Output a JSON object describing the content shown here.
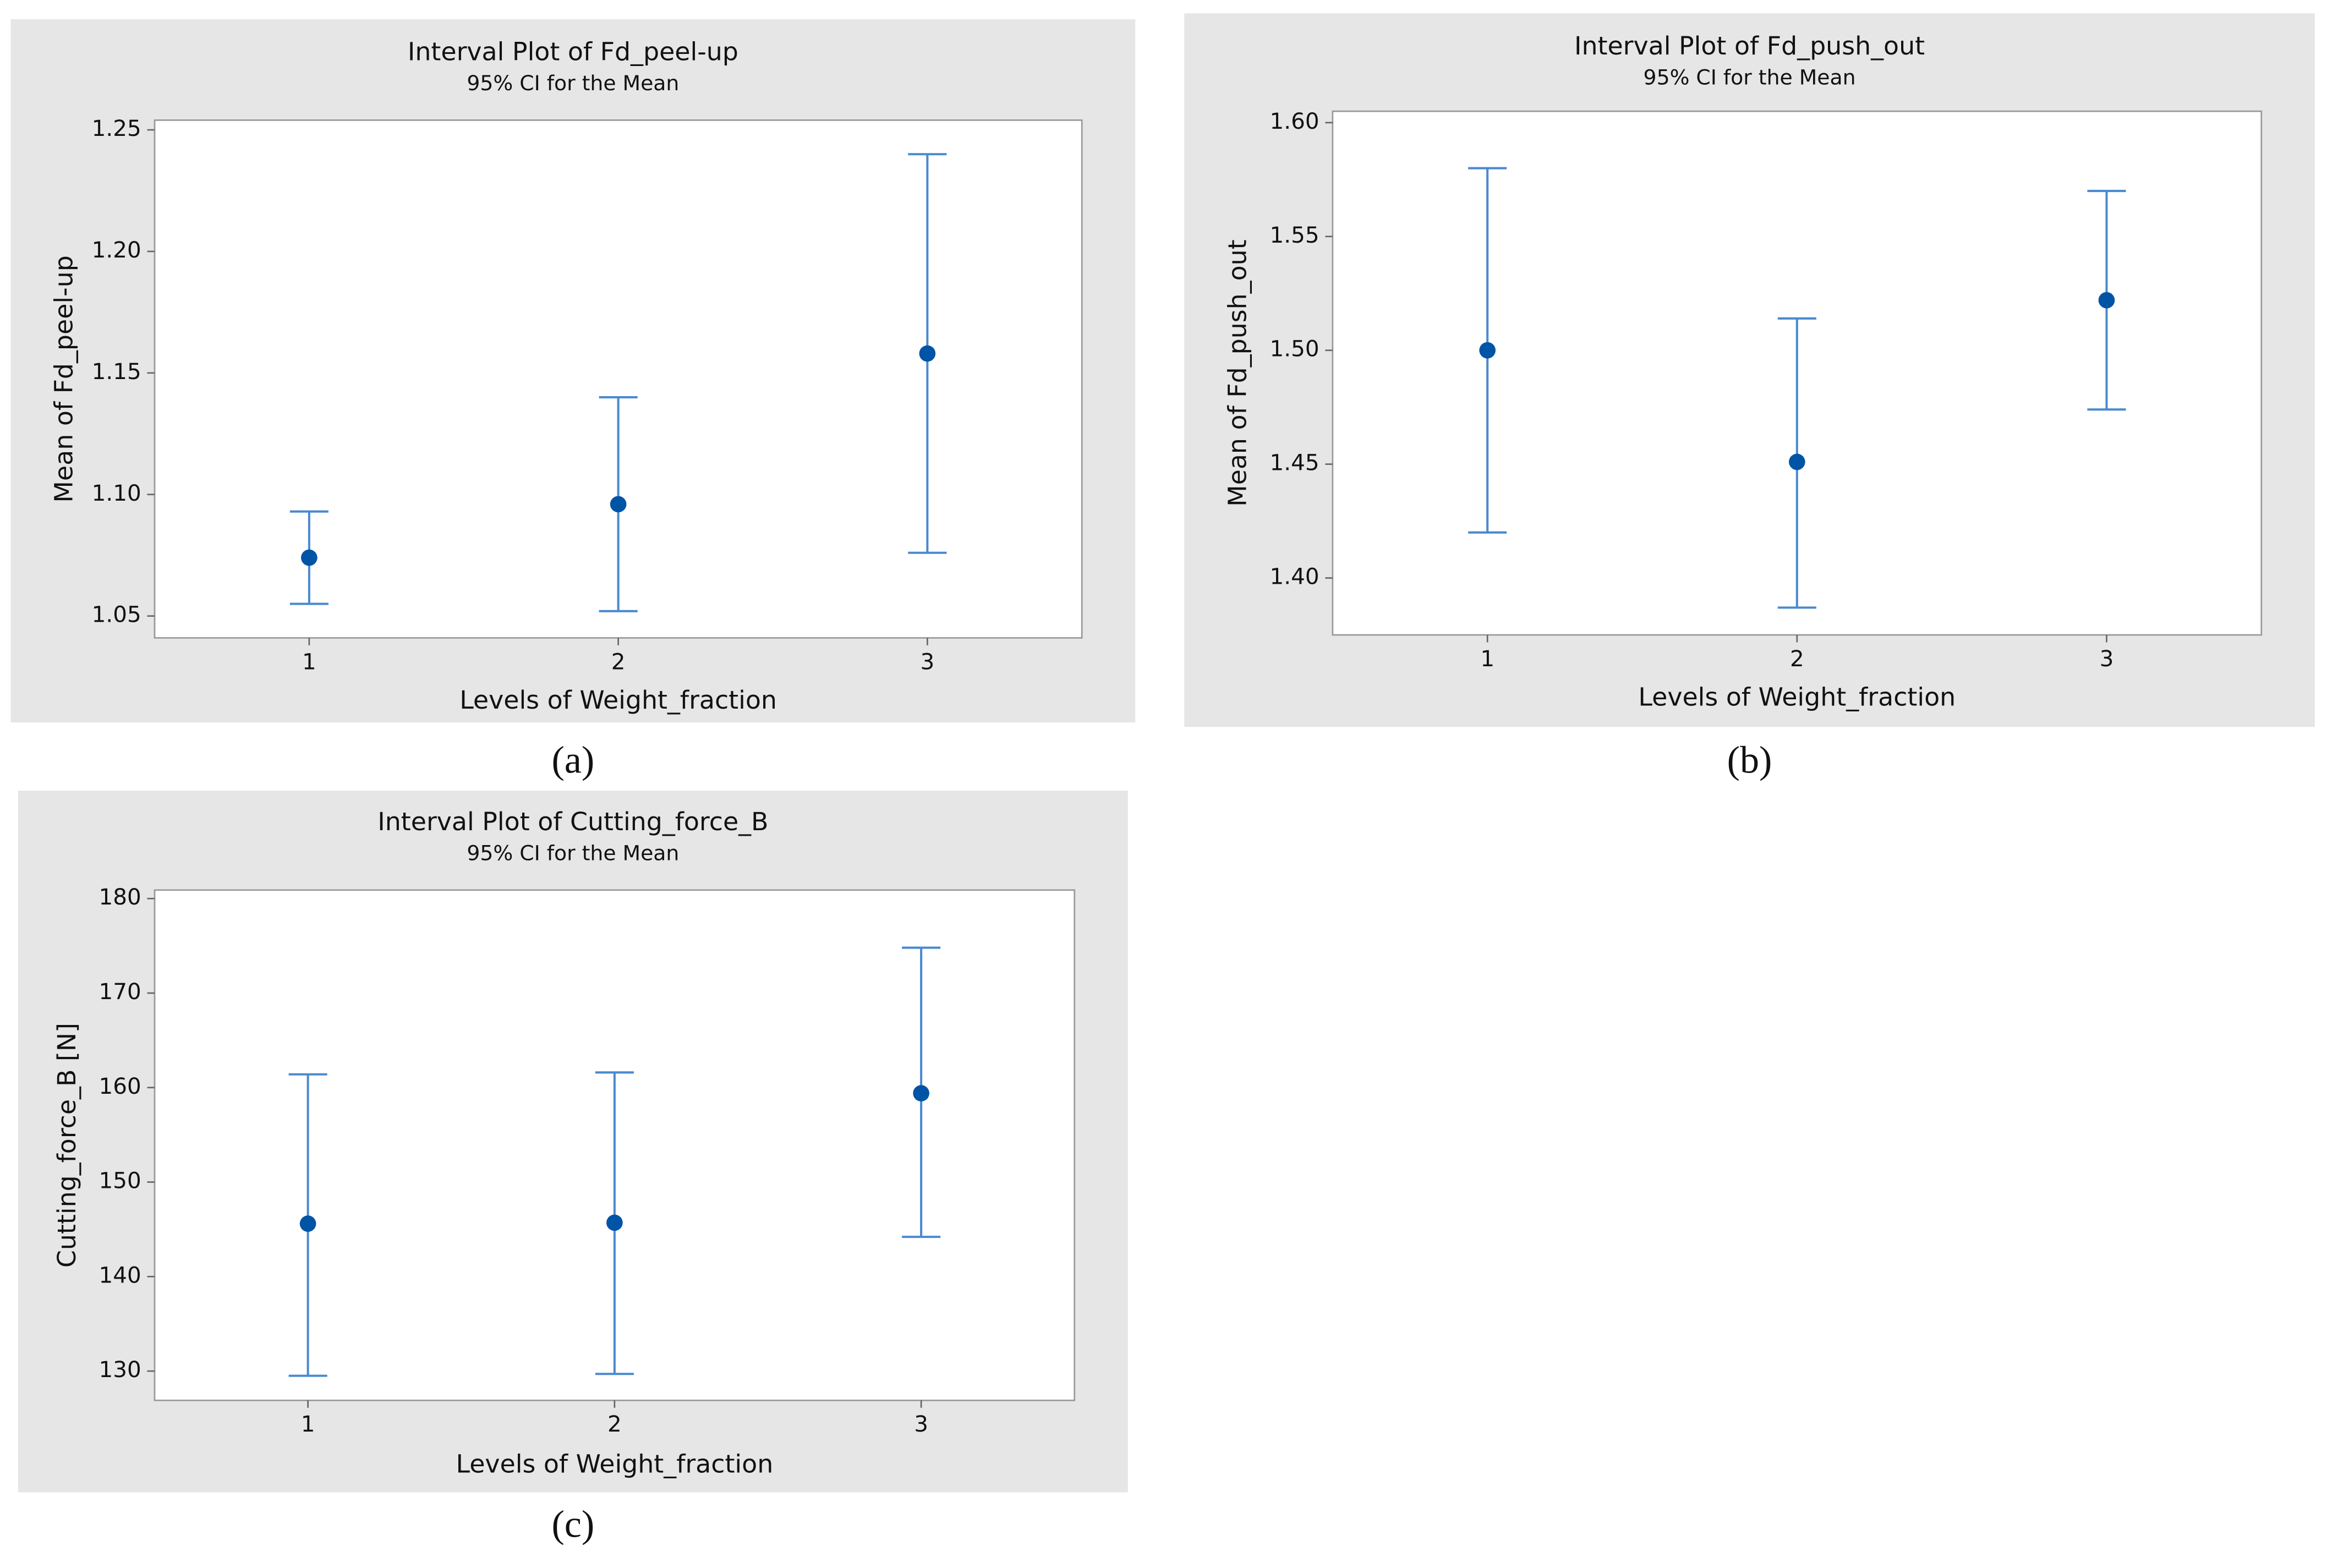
{
  "chart_data": [
    {
      "type": "interval",
      "panel_label": "(a)",
      "title": "Interval Plot of Fd_peel-up",
      "subtitle": "95% CI for the Mean",
      "x_label": "Levels of Weight_fraction",
      "y_label": "Mean of Fd_peel-up",
      "categories": [
        "1",
        "2",
        "3"
      ],
      "values": [
        1.074,
        1.096,
        1.158
      ],
      "lower": [
        1.055,
        1.052,
        1.076
      ],
      "upper": [
        1.093,
        1.14,
        1.24
      ],
      "color": "#0054a6",
      "interval_color": "#4a8ad0",
      "ylim": [
        1.041,
        1.254
      ],
      "yticks": [
        1.05,
        {
          "value": 1.1,
          "label": "1.10"
        },
        1.15,
        {
          "value": 1.2,
          "label": "1.20"
        },
        1.25
      ]
    },
    {
      "type": "interval",
      "panel_label": "(b)",
      "title": "Interval Plot of Fd_push_out",
      "subtitle": "95% CI for the Mean",
      "x_label": "Levels of Weight_fraction",
      "y_label": "Mean of Fd_push_out",
      "categories": [
        "1",
        "2",
        "3"
      ],
      "values": [
        1.5,
        1.451,
        1.522
      ],
      "lower": [
        1.42,
        1.387,
        1.474
      ],
      "upper": [
        1.58,
        1.514,
        1.57
      ],
      "color": "#0054a6",
      "interval_color": "#4a8ad0",
      "ylim": [
        1.375,
        1.605
      ],
      "yticks": [
        {
          "value": 1.4,
          "label": "1.40"
        },
        1.45,
        {
          "value": 1.5,
          "label": "1.50"
        },
        1.55,
        {
          "value": 1.6,
          "label": "1.60"
        }
      ]
    },
    {
      "type": "interval",
      "panel_label": "(c)",
      "title": "Interval Plot of Cutting_force_B",
      "subtitle": "95% CI for the Mean",
      "x_label": "Levels of Weight_fraction",
      "y_label": "Cutting_force_B [N]",
      "categories": [
        "1",
        "2",
        "3"
      ],
      "values": [
        145.6,
        145.7,
        159.4
      ],
      "lower": [
        129.5,
        129.7,
        144.2
      ],
      "upper": [
        161.4,
        161.6,
        174.8
      ],
      "color": "#0054a6",
      "interval_color": "#4a8ad0",
      "ylim": [
        126.9,
        180.9
      ],
      "yticks": [
        130,
        140,
        150,
        160,
        170,
        180
      ]
    }
  ]
}
